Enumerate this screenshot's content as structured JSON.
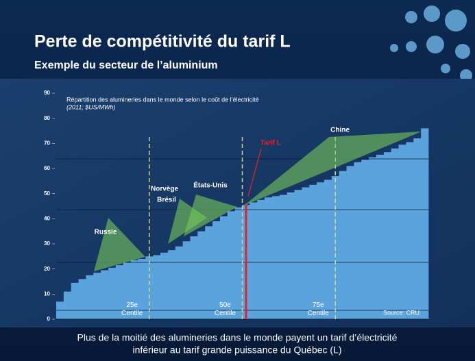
{
  "header": {
    "title": "Perte de compétitivité du tarif L",
    "subtitle": "Exemple du secteur de l’aluminium"
  },
  "chart_data": {
    "type": "bar",
    "title": "Répartition des alumineries dans le monde selon le coût de l’électricité",
    "subtitle": "(2011; $US/MWh)",
    "x": [
      1,
      3,
      5,
      7,
      9,
      11,
      13,
      15,
      17,
      19,
      21,
      23,
      25,
      27,
      29,
      31,
      33,
      35,
      37,
      39,
      41,
      43,
      45,
      47,
      49,
      51,
      53,
      55,
      57,
      59,
      61,
      63,
      65,
      67,
      69,
      71,
      73,
      75,
      77,
      79,
      81,
      83,
      85,
      87,
      89,
      91,
      93,
      95,
      97,
      99
    ],
    "values": [
      7,
      11,
      14.5,
      16,
      17.5,
      18.5,
      19.5,
      20.5,
      21.5,
      22.5,
      23.5,
      24,
      25,
      25.5,
      26.5,
      27.5,
      29,
      31,
      33,
      35,
      37,
      39,
      41,
      43,
      44.5,
      45.5,
      46.5,
      47.5,
      48.5,
      49,
      49.5,
      50.5,
      51.5,
      52.5,
      53.5,
      54.5,
      55.5,
      57,
      59,
      61,
      62.5,
      63.5,
      64.5,
      65.5,
      66.5,
      68,
      69.5,
      70.5,
      72,
      76
    ],
    "color": "#5aa3dc",
    "xlim": [
      0,
      100
    ],
    "ylim": [
      0,
      90
    ],
    "yticks": [
      0,
      10,
      20,
      30,
      40,
      50,
      60,
      70,
      80,
      90
    ],
    "percentiles": [
      {
        "x": 25,
        "lines": [
          "25e",
          "Centile"
        ]
      },
      {
        "x": 50,
        "lines": [
          "50e",
          "Centile"
        ]
      },
      {
        "x": 75,
        "lines": [
          "75e",
          "Centile"
        ]
      }
    ],
    "regions": [
      "Russie",
      "Norvège",
      "Brésil",
      "États-Unis",
      "Chine"
    ],
    "tarif_l": {
      "label": "Tarif L",
      "x": 51,
      "value": 46
    },
    "source": "Source: CRU"
  },
  "footer": [
    "Plus de la moitié des alumineries dans le monde payent un tarif d’électricité",
    "inférieur au tarif grande puissance du Québec (L)"
  ]
}
